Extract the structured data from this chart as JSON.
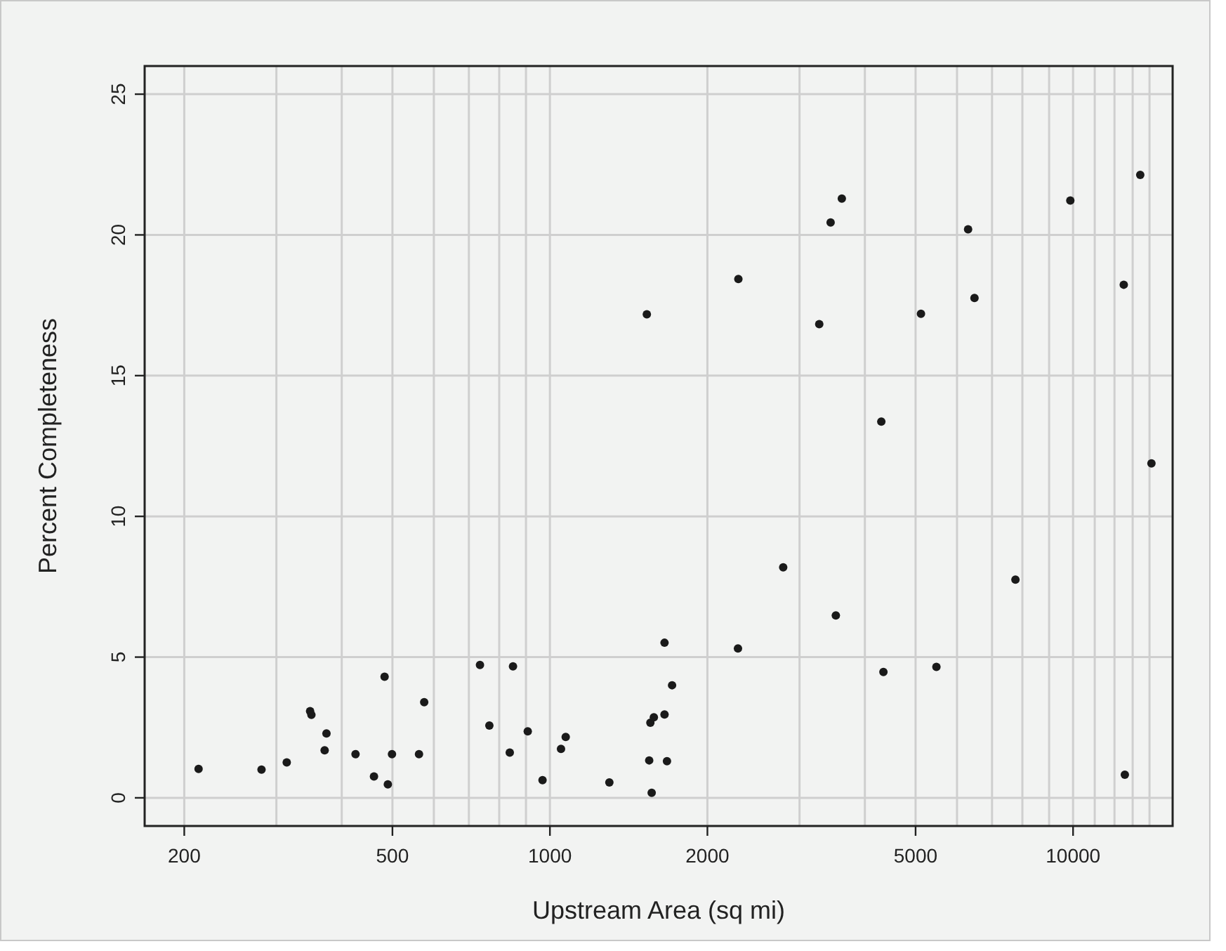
{
  "chart_data": {
    "type": "scatter",
    "xlabel": "Upstream Area (sq mi)",
    "ylabel": "Percent Completeness",
    "log": "x",
    "grid": true,
    "marker": "circle",
    "xlim": [
      168,
      15500
    ],
    "ylim": [
      -1,
      26
    ],
    "xticks": [
      200,
      {
        "value": 300,
        "label": null
      },
      {
        "value": 400,
        "label": null
      },
      500,
      {
        "value": 600,
        "label": null
      },
      {
        "value": 700,
        "label": null
      },
      {
        "value": 800,
        "label": null
      },
      {
        "value": 900,
        "label": null
      },
      1000,
      2000,
      {
        "value": 3000,
        "label": null
      },
      {
        "value": 4000,
        "label": null
      },
      5000,
      {
        "value": 6000,
        "label": null
      },
      {
        "value": 7000,
        "label": null
      },
      {
        "value": 8000,
        "label": null
      },
      {
        "value": 9000,
        "label": null
      },
      10000,
      {
        "value": 11000,
        "label": null
      },
      {
        "value": 12000,
        "label": null
      },
      {
        "value": 13000,
        "label": null
      },
      {
        "value": 14000,
        "label": null
      }
    ],
    "yticks": [
      0,
      5,
      10,
      15,
      20,
      25
    ],
    "series": [
      {
        "color": "#1a1a1a",
        "x": [
          213,
          281,
          314,
          348,
          350,
          374,
          371,
          425,
          461,
          483,
          490,
          499,
          562,
          575,
          735,
          850,
          766,
          838,
          907,
          968,
          1050,
          1072,
          1299,
          1656,
          1712,
          1556,
          1580,
          1656,
          1548,
          1674,
          1565,
          2288,
          2792,
          3520,
          4340,
          5480,
          1532,
          2292,
          3272,
          3440,
          3614,
          4300,
          5120,
          6300,
          6480,
          9880,
          12500,
          13440,
          14120,
          7760,
          12560
        ],
        "values": [
          1.03,
          1.0,
          1.26,
          3.08,
          2.95,
          2.29,
          1.69,
          1.55,
          0.76,
          4.3,
          0.48,
          1.55,
          1.55,
          3.4,
          4.72,
          4.67,
          2.57,
          1.61,
          2.36,
          0.63,
          1.74,
          2.16,
          0.55,
          5.51,
          4.0,
          2.67,
          2.86,
          2.96,
          1.33,
          1.3,
          0.18,
          5.31,
          8.19,
          6.48,
          4.47,
          4.65,
          17.18,
          18.43,
          16.83,
          20.44,
          21.29,
          13.37,
          17.2,
          20.2,
          17.76,
          21.22,
          18.23,
          22.13,
          11.88,
          7.75,
          0.82
        ]
      }
    ]
  }
}
